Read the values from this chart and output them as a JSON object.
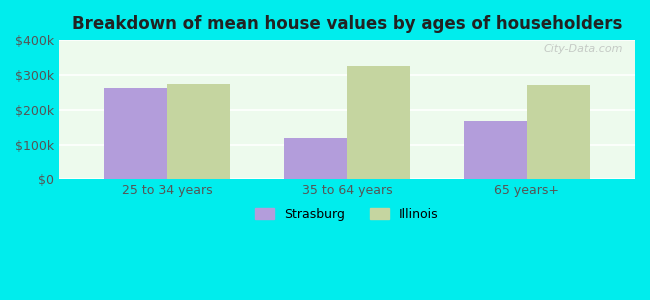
{
  "title": "Breakdown of mean house values by ages of householders",
  "categories": [
    "25 to 34 years",
    "35 to 64 years",
    "65 years+"
  ],
  "strasburg_values": [
    262000,
    120000,
    168000
  ],
  "illinois_values": [
    275000,
    325000,
    272000
  ],
  "strasburg_color": "#b39ddb",
  "illinois_color": "#c5d5a0",
  "ylim": [
    0,
    400000
  ],
  "yticks": [
    0,
    100000,
    200000,
    300000,
    400000
  ],
  "ytick_labels": [
    "$0",
    "$100k",
    "$200k",
    "$300k",
    "$400k"
  ],
  "background_color": "#00eded",
  "plot_bg_color": "#edfaed",
  "bar_width": 0.35,
  "legend_labels": [
    "Strasburg",
    "Illinois"
  ],
  "watermark": "City-Data.com"
}
